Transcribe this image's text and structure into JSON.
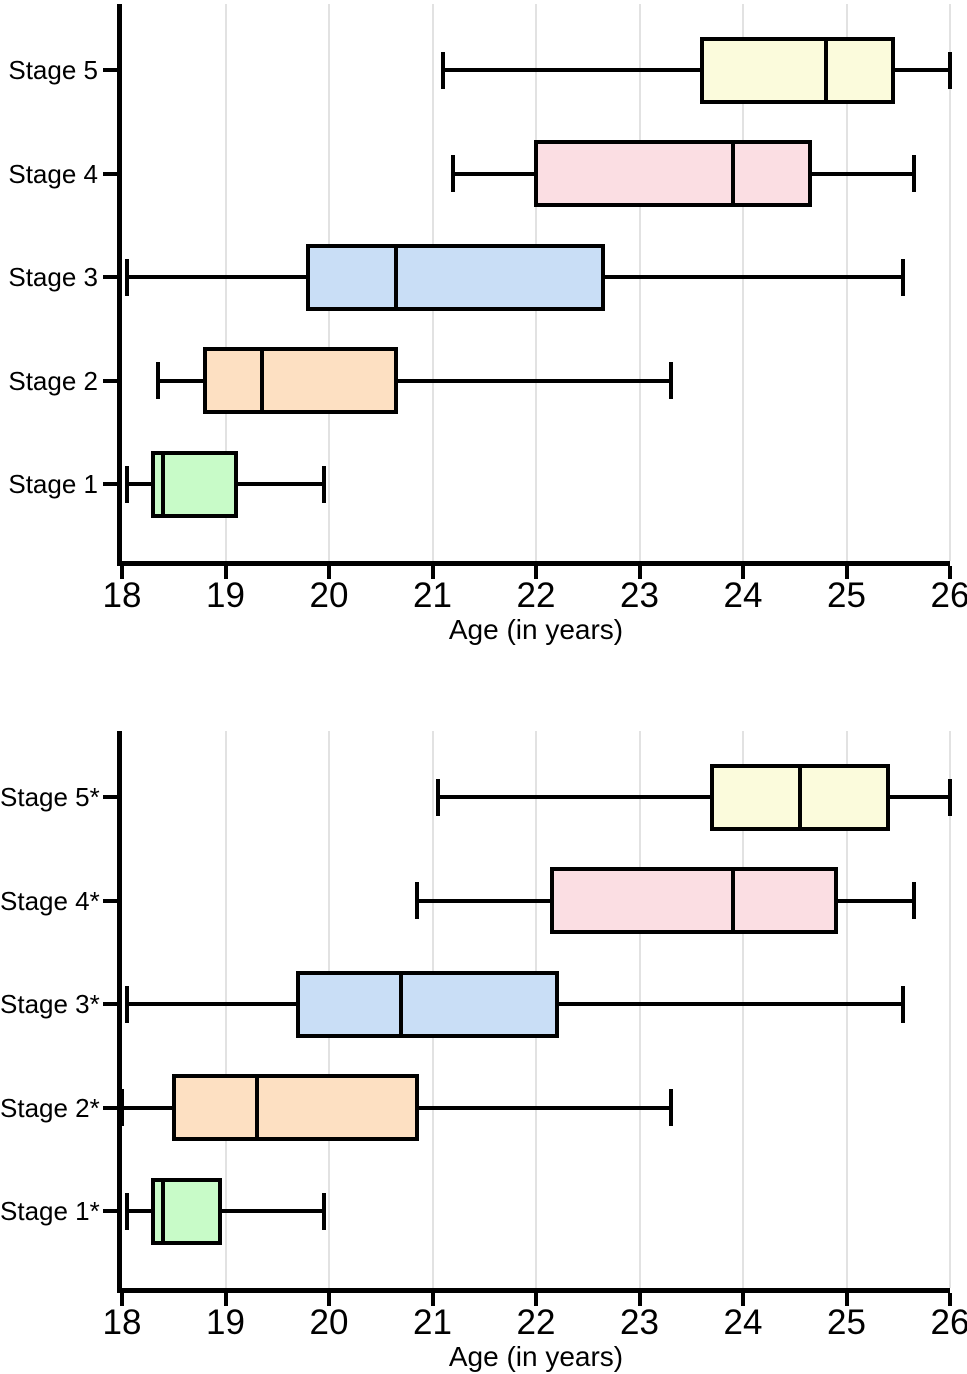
{
  "style": {
    "background": "#ffffff",
    "line_color": "#000000",
    "grid_color": "#e2e2e2",
    "text_color": "#000000"
  },
  "chart_data": [
    {
      "type": "boxplot",
      "orientation": "horizontal",
      "title": "",
      "xlabel": "Age (in years)",
      "ylabel": "",
      "xlim": [
        18,
        26
      ],
      "x_ticks": [
        18,
        19,
        20,
        21,
        22,
        23,
        24,
        25,
        26
      ],
      "grid": "vertical gridlines on",
      "legend": "none",
      "categories_top_to_bottom": [
        "Stage 5",
        "Stage 4",
        "Stage 3",
        "Stage 2",
        "Stage 1"
      ],
      "series": [
        {
          "category": "Stage 5",
          "fill": "#fbfbdc",
          "whisker_min": 21.1,
          "q1": 23.6,
          "median": 24.8,
          "q3": 25.45,
          "whisker_max": 26.0
        },
        {
          "category": "Stage 4",
          "fill": "#fbdee3",
          "whisker_min": 21.2,
          "q1": 22.0,
          "median": 23.9,
          "q3": 24.65,
          "whisker_max": 25.65
        },
        {
          "category": "Stage 3",
          "fill": "#c9def6",
          "whisker_min": 18.05,
          "q1": 19.8,
          "median": 20.65,
          "q3": 22.65,
          "whisker_max": 25.55
        },
        {
          "category": "Stage 2",
          "fill": "#fde0c2",
          "whisker_min": 18.35,
          "q1": 18.8,
          "median": 19.35,
          "q3": 20.65,
          "whisker_max": 23.3
        },
        {
          "category": "Stage 1",
          "fill": "#c8fbc8",
          "whisker_min": 18.05,
          "q1": 18.3,
          "median": 18.4,
          "q3": 19.1,
          "whisker_max": 19.95
        }
      ]
    },
    {
      "type": "boxplot",
      "orientation": "horizontal",
      "title": "",
      "xlabel": "Age (in years)",
      "ylabel": "",
      "xlim": [
        18,
        26
      ],
      "x_ticks": [
        18,
        19,
        20,
        21,
        22,
        23,
        24,
        25,
        26
      ],
      "grid": "vertical gridlines on",
      "legend": "none",
      "categories_top_to_bottom": [
        "Stage 5*",
        "Stage 4*",
        "Stage 3*",
        "Stage 2*",
        "Stage 1*"
      ],
      "series": [
        {
          "category": "Stage 5*",
          "fill": "#fbfbdc",
          "whisker_min": 21.05,
          "q1": 23.7,
          "median": 24.55,
          "q3": 25.4,
          "whisker_max": 26.0
        },
        {
          "category": "Stage 4*",
          "fill": "#fbdee3",
          "whisker_min": 20.85,
          "q1": 22.15,
          "median": 23.9,
          "q3": 24.9,
          "whisker_max": 25.65
        },
        {
          "category": "Stage 3*",
          "fill": "#c9def6",
          "whisker_min": 18.05,
          "q1": 19.7,
          "median": 20.7,
          "q3": 22.2,
          "whisker_max": 25.55
        },
        {
          "category": "Stage 2*",
          "fill": "#fde0c2",
          "whisker_min": 18.0,
          "q1": 18.5,
          "median": 19.3,
          "q3": 20.85,
          "whisker_max": 23.3
        },
        {
          "category": "Stage 1*",
          "fill": "#c8fbc8",
          "whisker_min": 18.05,
          "q1": 18.3,
          "median": 18.4,
          "q3": 18.95,
          "whisker_max": 19.95
        }
      ]
    }
  ]
}
